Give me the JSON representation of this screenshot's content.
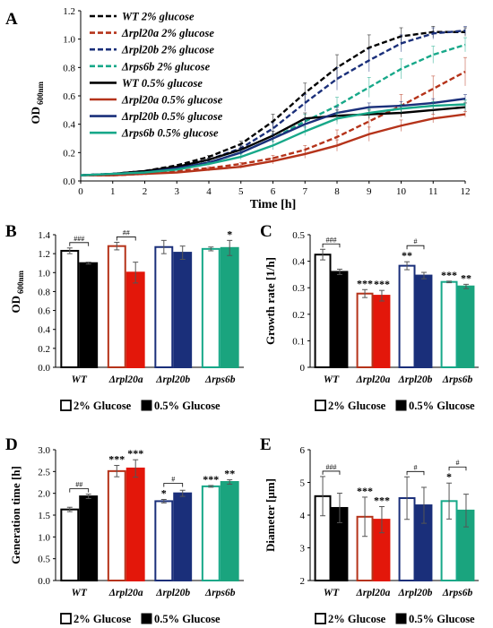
{
  "colors": {
    "wt": "#000000",
    "rpl20a": "#b5331a",
    "rpl20a_low": "#e3170a",
    "rpl20b": "#1a2f7a",
    "rps6b": "#17a889",
    "rps6b_low": "#1aa47e",
    "error_bar": "#555555"
  },
  "chart_data": [
    {
      "panel_letter": "A",
      "type": "line",
      "xlabel": "Time [h]",
      "ylabel_main": "OD",
      "ylabel_sub": "600nm",
      "x": [
        0,
        1,
        2,
        3,
        4,
        5,
        6,
        7,
        8,
        9,
        10,
        11,
        12
      ],
      "xlim": [
        0,
        12
      ],
      "ylim": [
        0,
        1.2
      ],
      "yticks": [
        "0.0",
        "0.2",
        "0.4",
        "0.6",
        "0.8",
        "1.0",
        "1.2"
      ],
      "xticks": [
        "0",
        "1",
        "2",
        "3",
        "4",
        "5",
        "6",
        "7",
        "8",
        "9",
        "10",
        "11",
        "12"
      ],
      "legend_position": "top-left",
      "series": [
        {
          "name": "WT 2% glucose",
          "color": "#000000",
          "dashed": true,
          "values": [
            0.04,
            0.05,
            0.07,
            0.11,
            0.17,
            0.26,
            0.42,
            0.62,
            0.8,
            0.94,
            1.02,
            1.05,
            1.05
          ],
          "errors": [
            0,
            0,
            0,
            0,
            0.01,
            0.02,
            0.05,
            0.07,
            0.09,
            0.09,
            0.06,
            0.04,
            0.03
          ]
        },
        {
          "name": "Δrpl20a 2% glucose",
          "color": "#b5331a",
          "dashed": true,
          "values": [
            0.04,
            0.04,
            0.05,
            0.07,
            0.09,
            0.12,
            0.16,
            0.22,
            0.31,
            0.42,
            0.53,
            0.65,
            0.77
          ],
          "errors": [
            0,
            0,
            0,
            0,
            0.01,
            0.01,
            0.02,
            0.03,
            0.05,
            0.06,
            0.08,
            0.09,
            0.1
          ]
        },
        {
          "name": "Δrpl20b 2% glucose",
          "color": "#1a2f7a",
          "dashed": true,
          "values": [
            0.04,
            0.05,
            0.07,
            0.1,
            0.15,
            0.23,
            0.37,
            0.55,
            0.72,
            0.85,
            0.97,
            1.04,
            1.06
          ],
          "errors": [
            0,
            0,
            0,
            0,
            0.01,
            0.02,
            0.04,
            0.06,
            0.08,
            0.08,
            0.06,
            0.04,
            0.03
          ]
        },
        {
          "name": "Δrps6b 2% glucose",
          "color": "#17a889",
          "dashed": true,
          "values": [
            0.04,
            0.05,
            0.06,
            0.09,
            0.13,
            0.2,
            0.3,
            0.42,
            0.53,
            0.66,
            0.79,
            0.89,
            0.96
          ],
          "errors": [
            0,
            0,
            0,
            0,
            0.01,
            0.02,
            0.03,
            0.05,
            0.06,
            0.07,
            0.07,
            0.06,
            0.05
          ]
        },
        {
          "name": "WT 0.5% glucose",
          "color": "#000000",
          "dashed": false,
          "values": [
            0.04,
            0.05,
            0.07,
            0.1,
            0.15,
            0.22,
            0.32,
            0.44,
            0.46,
            0.47,
            0.48,
            0.5,
            0.52
          ],
          "errors": [
            0,
            0,
            0,
            0,
            0.01,
            0.02,
            0.03,
            0.04,
            0.04,
            0.03,
            0.03,
            0.03,
            0.03
          ]
        },
        {
          "name": "Δrpl20a 0.5% glucose",
          "color": "#b5331a",
          "dashed": false,
          "values": [
            0.04,
            0.04,
            0.05,
            0.06,
            0.08,
            0.1,
            0.14,
            0.19,
            0.25,
            0.33,
            0.39,
            0.44,
            0.47
          ],
          "errors": [
            0,
            0,
            0,
            0,
            0.01,
            0.01,
            0.02,
            0.03,
            0.04,
            0.05,
            0.04,
            0.03,
            0.02
          ]
        },
        {
          "name": "Δrpl20b 0.5% glucose",
          "color": "#1a2f7a",
          "dashed": false,
          "values": [
            0.04,
            0.05,
            0.06,
            0.09,
            0.13,
            0.2,
            0.3,
            0.4,
            0.48,
            0.52,
            0.53,
            0.55,
            0.58
          ],
          "errors": [
            0,
            0,
            0,
            0,
            0.01,
            0.02,
            0.03,
            0.04,
            0.04,
            0.03,
            0.03,
            0.03,
            0.03
          ]
        },
        {
          "name": "Δrps6b 0.5% glucose",
          "color": "#17a889",
          "dashed": false,
          "values": [
            0.04,
            0.05,
            0.06,
            0.08,
            0.12,
            0.17,
            0.25,
            0.35,
            0.44,
            0.48,
            0.51,
            0.53,
            0.54
          ],
          "errors": [
            0,
            0,
            0,
            0,
            0.01,
            0.02,
            0.03,
            0.03,
            0.04,
            0.03,
            0.03,
            0.03,
            0.03
          ]
        }
      ]
    },
    {
      "panel_letter": "B",
      "type": "bar",
      "ylabel_main": "OD",
      "ylabel_sub": "600nm",
      "categories": [
        "WT",
        "Δrpl20a",
        "Δrpl20b",
        "Δrps6b"
      ],
      "ylim": [
        0,
        1.4
      ],
      "yticks": [
        "0.0",
        "0.2",
        "0.4",
        "0.6",
        "0.8",
        "1.0",
        "1.2",
        "1.4"
      ],
      "legend_labels": [
        "2% Glucose",
        "0.5% Glucose"
      ],
      "series": [
        {
          "name": "2% Glucose",
          "values": [
            1.23,
            1.28,
            1.27,
            1.25
          ],
          "errors": [
            0.03,
            0.04,
            0.07,
            0.02
          ],
          "sig": [
            "",
            "",
            "",
            ""
          ]
        },
        {
          "name": "0.5% Glucose",
          "values": [
            1.1,
            1.0,
            1.21,
            1.26
          ],
          "errors": [
            0.01,
            0.11,
            0.07,
            0.08
          ],
          "sig": [
            "",
            "",
            "",
            "*"
          ]
        }
      ],
      "brackets": [
        {
          "group": 0,
          "label": "###"
        },
        {
          "group": 1,
          "label": "##"
        }
      ]
    },
    {
      "panel_letter": "C",
      "type": "bar",
      "ylabel_main": "Growth rate [1/h]",
      "categories": [
        "WT",
        "Δrpl20a",
        "Δrpl20b",
        "Δrps6b"
      ],
      "ylim": [
        0,
        0.5
      ],
      "yticks": [
        "0",
        "0.1",
        "0.2",
        "0.3",
        "0.4",
        "0.5"
      ],
      "legend_labels": [
        "2% Glucose",
        "0.5% Glucose"
      ],
      "series": [
        {
          "name": "2% Glucose",
          "values": [
            0.425,
            0.278,
            0.383,
            0.322
          ],
          "errors": [
            0.02,
            0.015,
            0.015,
            0.003
          ],
          "sig": [
            "",
            "***",
            "**",
            "***"
          ]
        },
        {
          "name": "0.5% Glucose",
          "values": [
            0.36,
            0.27,
            0.346,
            0.305
          ],
          "errors": [
            0.01,
            0.02,
            0.012,
            0.008
          ],
          "sig": [
            "",
            "***",
            "",
            "**"
          ]
        }
      ],
      "brackets": [
        {
          "group": 0,
          "label": "###"
        },
        {
          "group": 2,
          "label": "#"
        }
      ]
    },
    {
      "panel_letter": "D",
      "type": "bar",
      "ylabel_main": "Generation time [h]",
      "categories": [
        "WT",
        "Δrpl20a",
        "Δrpl20b",
        "Δrps6b"
      ],
      "ylim": [
        0,
        3.0
      ],
      "yticks": [
        "0.0",
        "0.5",
        "1.0",
        "1.5",
        "2.0",
        "2.5",
        "3.0"
      ],
      "legend_labels": [
        "2% Glucose",
        "0.5% Glucose"
      ],
      "series": [
        {
          "name": "2% Glucose",
          "values": [
            1.63,
            2.51,
            1.82,
            2.16
          ],
          "errors": [
            0.05,
            0.13,
            0.04,
            0.02
          ],
          "sig": [
            "",
            "***",
            "*",
            "***"
          ]
        },
        {
          "name": "0.5% Glucose",
          "values": [
            1.93,
            2.57,
            2.0,
            2.26
          ],
          "errors": [
            0.05,
            0.2,
            0.07,
            0.05
          ],
          "sig": [
            "",
            "***",
            "",
            "**"
          ]
        }
      ],
      "brackets": [
        {
          "group": 0,
          "label": "##"
        },
        {
          "group": 2,
          "label": "#"
        }
      ]
    },
    {
      "panel_letter": "E",
      "type": "bar",
      "ylabel_main": "Diameter [µm]",
      "categories": [
        "WT",
        "Δrpl20a",
        "Δrpl20b",
        "Δrps6b"
      ],
      "ylim": [
        2,
        6
      ],
      "yticks": [
        "2",
        "3",
        "4",
        "5",
        "6"
      ],
      "legend_labels": [
        "2% Glucose",
        "0.5% Glucose"
      ],
      "series": [
        {
          "name": "2% Glucose",
          "values": [
            4.58,
            3.95,
            4.52,
            4.43
          ],
          "errors": [
            0.6,
            0.6,
            0.65,
            0.55
          ],
          "sig": [
            "",
            "***",
            "",
            "*"
          ]
        },
        {
          "name": "0.5% Glucose",
          "values": [
            4.22,
            3.86,
            4.3,
            4.14
          ],
          "errors": [
            0.45,
            0.4,
            0.55,
            0.5
          ],
          "sig": [
            "",
            "***",
            "",
            ""
          ]
        }
      ],
      "brackets": [
        {
          "group": 0,
          "label": "###"
        },
        {
          "group": 2,
          "label": "#"
        },
        {
          "group": 3,
          "label": "#"
        }
      ]
    }
  ]
}
